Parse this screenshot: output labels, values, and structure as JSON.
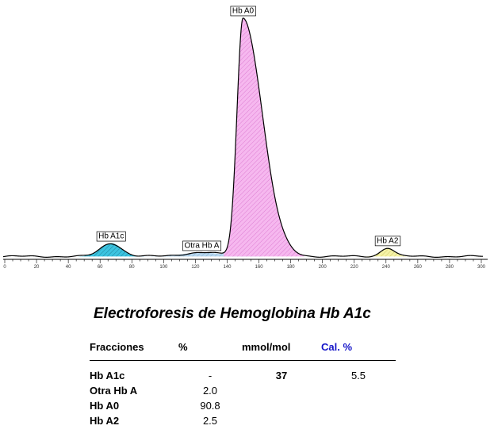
{
  "chart_data": {
    "type": "area",
    "title": "",
    "xlabel": "",
    "ylabel": "",
    "xlim": [
      0,
      300
    ],
    "ylim": [
      0,
      100
    ],
    "x_ticks": [
      0,
      20,
      40,
      60,
      80,
      100,
      120,
      140,
      160,
      180,
      200,
      220,
      240,
      260,
      280,
      300
    ],
    "grid": false,
    "baseline": 1.2,
    "peaks": [
      {
        "label": "Hb A1c",
        "center": 67,
        "height": 5.5,
        "sigma": 6.5,
        "fill": "#3cc4e0",
        "hatch": "#1a6f8a"
      },
      {
        "label": "Otra Hb A",
        "center": 124,
        "height": 1.6,
        "sigma": 12,
        "fill": "#b8d7ee",
        "hatch": "#7aa6cc"
      },
      {
        "label": "Hb A0",
        "center": 150,
        "height": 98.5,
        "sigma_left": 3.8,
        "sigma_right": 12,
        "fill": "#f6b8ef",
        "hatch": "#d76fcb"
      },
      {
        "label": "Hb A2",
        "center": 241,
        "height": 3.6,
        "sigma": 4.2,
        "fill": "#f5f2a6",
        "hatch": "#c6bf57"
      }
    ]
  },
  "report": {
    "title": "Electroforesis de Hemoglobina Hb A1c",
    "headers": {
      "fraction": "Fracciones",
      "percent": "%",
      "mmol": "mmol/mol",
      "cal": "Cal. %"
    },
    "rows": [
      {
        "name": "Hb A1c",
        "percent": "-",
        "mmol": "37",
        "cal": "5.5"
      },
      {
        "name": "Otra Hb A",
        "percent": "2.0",
        "mmol": "",
        "cal": ""
      },
      {
        "name": "Hb A0",
        "percent": "90.8",
        "mmol": "",
        "cal": ""
      },
      {
        "name": "Hb A2",
        "percent": "2.5",
        "mmol": "",
        "cal": ""
      }
    ]
  }
}
